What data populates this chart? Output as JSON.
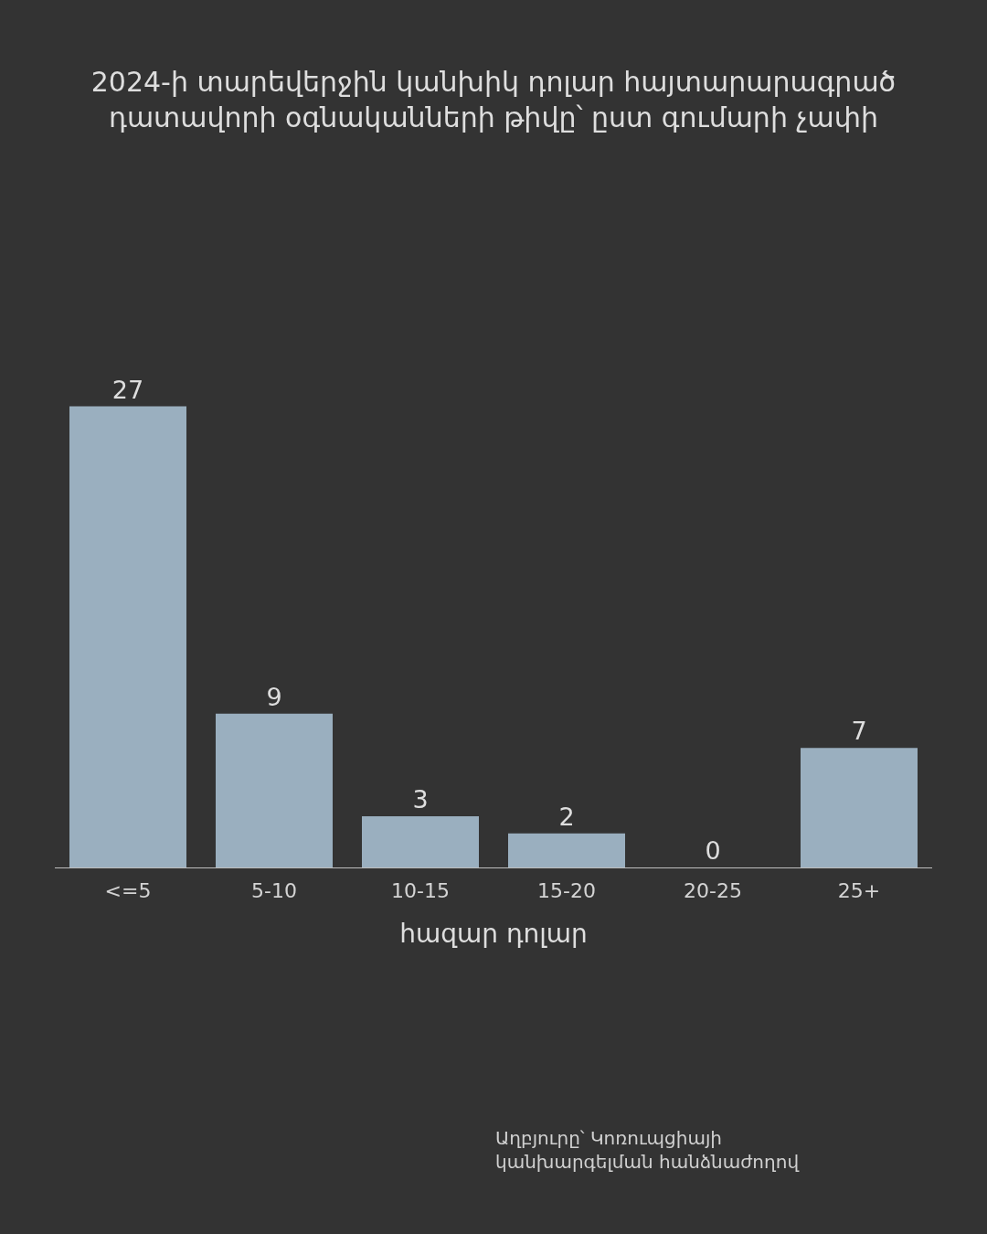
{
  "chart_data": {
    "type": "bar",
    "title": "2024-ի տարեվերջին կանխիկ դոլար հայտարարագրած\nդատավորի օգնականների թիվը՝ ըստ գումարի չափի",
    "xlabel": "հազար դոլար",
    "categories": [
      "<=5",
      "5-10",
      "10-15",
      "15-20",
      "20-25",
      "25+"
    ],
    "values": [
      27,
      9,
      3,
      2,
      0,
      7
    ],
    "color": "#9aafbf",
    "data_labels": true,
    "grid": false,
    "tick_labels": "x",
    "annotations": [
      "Աղբյուրը՝ Կոռուպցիայի\nկանխարգելման հանձնաժողով"
    ]
  }
}
